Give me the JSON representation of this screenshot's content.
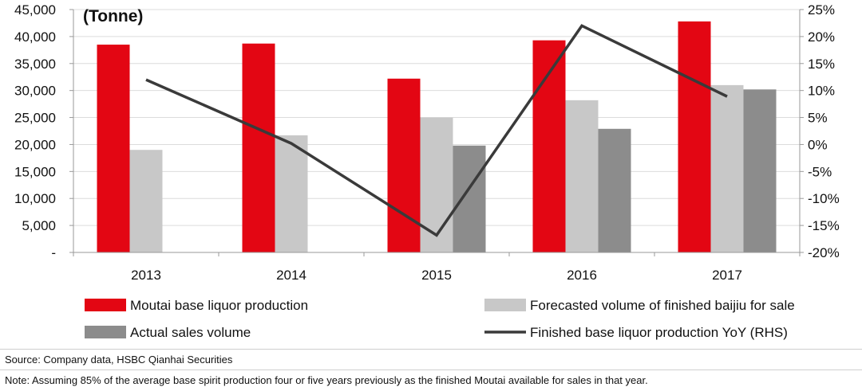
{
  "chart_data": {
    "type": "bar",
    "unit_label": "(Tonne)",
    "categories": [
      "2013",
      "2014",
      "2015",
      "2016",
      "2017"
    ],
    "y_left": {
      "min": 0,
      "max": 45000,
      "step": 5000,
      "ticks": [
        "-",
        "5,000",
        "10,000",
        "15,000",
        "20,000",
        "25,000",
        "30,000",
        "35,000",
        "40,000",
        "45,000"
      ]
    },
    "y_right": {
      "min": -20,
      "max": 25,
      "step": 5,
      "ticks": [
        "-20%",
        "-15%",
        "-10%",
        "-5%",
        "0%",
        "5%",
        "10%",
        "15%",
        "20%",
        "25%"
      ]
    },
    "series": [
      {
        "name": "Moutai base liquor production",
        "kind": "bar",
        "axis": "left",
        "color": "#e30613",
        "values": [
          38500,
          38700,
          32200,
          39300,
          42800
        ]
      },
      {
        "name": "Forecasted volume of finished baijiu for sale",
        "kind": "bar",
        "axis": "left",
        "color": "#c8c8c8",
        "values": [
          19000,
          21700,
          25000,
          28200,
          31000
        ]
      },
      {
        "name": "Actual sales volume",
        "kind": "bar",
        "axis": "left",
        "color": "#8c8c8c",
        "values": [
          null,
          null,
          19800,
          22900,
          30200
        ]
      },
      {
        "name": "Finished base liquor production YoY (RHS)",
        "kind": "line",
        "axis": "right",
        "color": "#3a3a3a",
        "values": [
          12.0,
          0.2,
          -16.8,
          22.0,
          8.9
        ]
      }
    ]
  },
  "footer": {
    "source": "Source: Company data, HSBC Qianhai Securities",
    "note": "Note: Assuming 85% of the average base spirit production four or five years previously as the finished Moutai available for sales in that year."
  }
}
